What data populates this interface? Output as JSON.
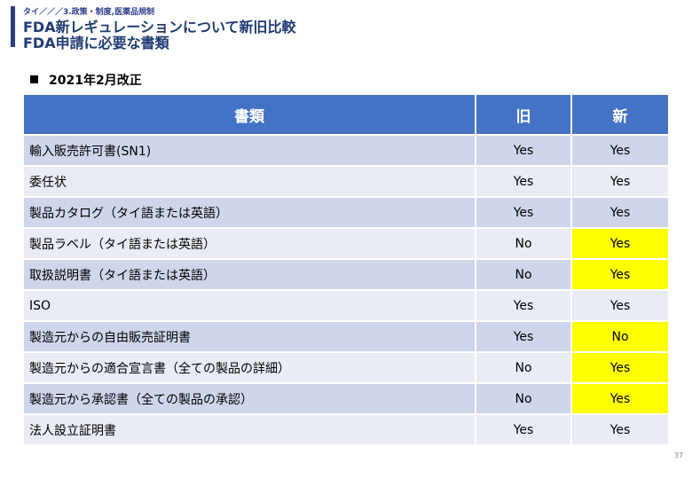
{
  "header": {
    "breadcrumb": "タイ／／／3.政策・制度,医薬品規制",
    "title_line1": "FDA新レギュレーションについて新旧比較",
    "title_line2": "FDA申請に必要な書類"
  },
  "section": {
    "heading": "2021年2月改正"
  },
  "table": {
    "columns": [
      "書類",
      "旧",
      "新"
    ],
    "rows": [
      {
        "name": "輸入販売許可書(SN1)",
        "old": "Yes",
        "new": "Yes",
        "highlight_new": false
      },
      {
        "name": "委任状",
        "old": "Yes",
        "new": "Yes",
        "highlight_new": false
      },
      {
        "name": "製品カタログ（タイ語または英語）",
        "old": "Yes",
        "new": "Yes",
        "highlight_new": false
      },
      {
        "name": "製品ラベル（タイ語または英語）",
        "old": "No",
        "new": "Yes",
        "highlight_new": true
      },
      {
        "name": "取扱説明書（タイ語または英語）",
        "old": "No",
        "new": "Yes",
        "highlight_new": true
      },
      {
        "name": "ISO",
        "old": "Yes",
        "new": "Yes",
        "highlight_new": false
      },
      {
        "name": "製造元からの自由販売証明書",
        "old": "Yes",
        "new": "No",
        "highlight_new": true
      },
      {
        "name": "製造元からの適合宣言書（全ての製品の詳細）",
        "old": "No",
        "new": "Yes",
        "highlight_new": true
      },
      {
        "name": "製造元から承認書（全ての製品の承認）",
        "old": "No",
        "new": "Yes",
        "highlight_new": true
      },
      {
        "name": "法人設立証明書",
        "old": "Yes",
        "new": "Yes",
        "highlight_new": false
      }
    ],
    "colors": {
      "header": "#4472c4",
      "row_odd": "#cfd5ea",
      "row_even": "#e9ebf5",
      "highlight": "#ffff00"
    }
  },
  "footer": {
    "page_number": "37"
  }
}
